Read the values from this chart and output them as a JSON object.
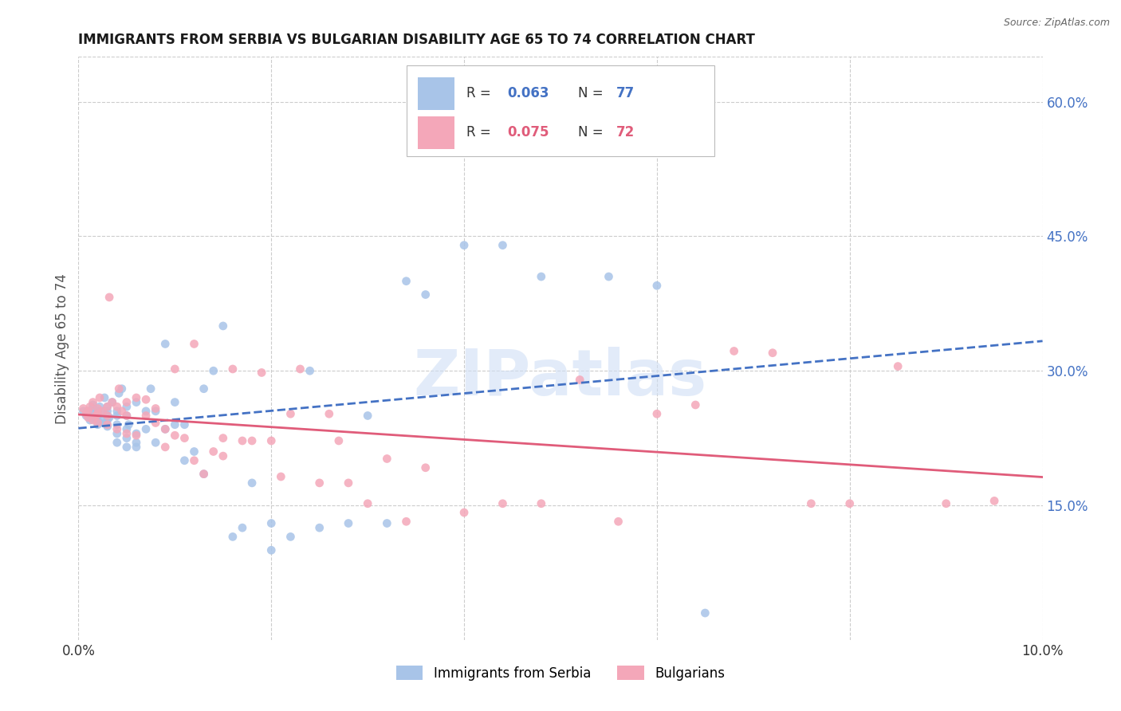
{
  "title": "IMMIGRANTS FROM SERBIA VS BULGARIAN DISABILITY AGE 65 TO 74 CORRELATION CHART",
  "source": "Source: ZipAtlas.com",
  "ylabel": "Disability Age 65 to 74",
  "xlim": [
    0.0,
    0.1
  ],
  "ylim": [
    0.0,
    0.65
  ],
  "right_yticks": [
    0.15,
    0.3,
    0.45,
    0.6
  ],
  "right_yticklabels": [
    "15.0%",
    "30.0%",
    "45.0%",
    "60.0%"
  ],
  "xtick_positions": [
    0.0,
    0.02,
    0.04,
    0.06,
    0.08,
    0.1
  ],
  "xticklabels": [
    "0.0%",
    "",
    "",
    "",
    "",
    "10.0%"
  ],
  "series": [
    {
      "label": "Immigrants from Serbia",
      "R": "0.063",
      "N": "77",
      "color": "#a8c4e8",
      "line_color": "#4472c4",
      "line_style": "--",
      "x": [
        0.0005,
        0.0008,
        0.001,
        0.001,
        0.0012,
        0.0013,
        0.0015,
        0.0015,
        0.0015,
        0.0018,
        0.002,
        0.002,
        0.002,
        0.0022,
        0.0022,
        0.0025,
        0.0025,
        0.0027,
        0.003,
        0.003,
        0.003,
        0.003,
        0.003,
        0.0032,
        0.0035,
        0.004,
        0.004,
        0.004,
        0.004,
        0.004,
        0.0042,
        0.0045,
        0.005,
        0.005,
        0.005,
        0.005,
        0.005,
        0.0052,
        0.006,
        0.006,
        0.006,
        0.006,
        0.007,
        0.007,
        0.0075,
        0.008,
        0.008,
        0.009,
        0.009,
        0.01,
        0.01,
        0.011,
        0.011,
        0.012,
        0.013,
        0.013,
        0.014,
        0.015,
        0.016,
        0.017,
        0.018,
        0.02,
        0.02,
        0.022,
        0.024,
        0.025,
        0.028,
        0.03,
        0.032,
        0.034,
        0.036,
        0.04,
        0.044,
        0.048,
        0.055,
        0.06,
        0.065
      ],
      "y": [
        0.255,
        0.25,
        0.25,
        0.255,
        0.245,
        0.248,
        0.252,
        0.258,
        0.262,
        0.245,
        0.24,
        0.25,
        0.255,
        0.242,
        0.26,
        0.245,
        0.255,
        0.27,
        0.238,
        0.245,
        0.25,
        0.255,
        0.26,
        0.248,
        0.265,
        0.22,
        0.23,
        0.24,
        0.25,
        0.255,
        0.275,
        0.28,
        0.215,
        0.225,
        0.235,
        0.25,
        0.26,
        0.24,
        0.215,
        0.22,
        0.23,
        0.265,
        0.235,
        0.255,
        0.28,
        0.22,
        0.255,
        0.235,
        0.33,
        0.24,
        0.265,
        0.2,
        0.24,
        0.21,
        0.185,
        0.28,
        0.3,
        0.35,
        0.115,
        0.125,
        0.175,
        0.1,
        0.13,
        0.115,
        0.3,
        0.125,
        0.13,
        0.25,
        0.13,
        0.4,
        0.385,
        0.44,
        0.44,
        0.405,
        0.405,
        0.395,
        0.03
      ]
    },
    {
      "label": "Bulgarians",
      "R": "0.075",
      "N": "72",
      "color": "#f4a7b9",
      "line_color": "#e05c7a",
      "line_style": "-",
      "x": [
        0.0005,
        0.0008,
        0.001,
        0.001,
        0.0012,
        0.0015,
        0.0015,
        0.0018,
        0.002,
        0.002,
        0.002,
        0.0022,
        0.0025,
        0.003,
        0.003,
        0.003,
        0.0032,
        0.0035,
        0.004,
        0.004,
        0.0042,
        0.0045,
        0.005,
        0.005,
        0.005,
        0.006,
        0.006,
        0.007,
        0.007,
        0.008,
        0.008,
        0.009,
        0.009,
        0.01,
        0.01,
        0.011,
        0.012,
        0.012,
        0.013,
        0.014,
        0.015,
        0.015,
        0.016,
        0.017,
        0.018,
        0.019,
        0.02,
        0.021,
        0.022,
        0.023,
        0.025,
        0.026,
        0.027,
        0.028,
        0.03,
        0.032,
        0.034,
        0.036,
        0.04,
        0.044,
        0.048,
        0.052,
        0.056,
        0.06,
        0.064,
        0.068,
        0.072,
        0.076,
        0.08,
        0.085,
        0.09,
        0.095
      ],
      "y": [
        0.258,
        0.252,
        0.248,
        0.255,
        0.26,
        0.245,
        0.265,
        0.25,
        0.242,
        0.252,
        0.258,
        0.27,
        0.255,
        0.24,
        0.25,
        0.26,
        0.382,
        0.265,
        0.235,
        0.26,
        0.28,
        0.255,
        0.23,
        0.25,
        0.265,
        0.228,
        0.27,
        0.25,
        0.268,
        0.242,
        0.258,
        0.215,
        0.235,
        0.228,
        0.302,
        0.225,
        0.2,
        0.33,
        0.185,
        0.21,
        0.205,
        0.225,
        0.302,
        0.222,
        0.222,
        0.298,
        0.222,
        0.182,
        0.252,
        0.302,
        0.175,
        0.252,
        0.222,
        0.175,
        0.152,
        0.202,
        0.132,
        0.192,
        0.142,
        0.152,
        0.152,
        0.29,
        0.132,
        0.252,
        0.262,
        0.322,
        0.32,
        0.152,
        0.152,
        0.305,
        0.152,
        0.155
      ]
    }
  ],
  "watermark_text": "ZIPatlas",
  "watermark_color": "#d0dff5",
  "background_color": "#ffffff",
  "grid_color": "#cccccc",
  "title_color": "#1a1a1a",
  "axis_label_color": "#555555",
  "right_axis_color": "#4472c4",
  "legend_R_color_serbia": "#4472c4",
  "legend_R_color_bulgarian": "#e05c7a",
  "scatter_size": 60
}
